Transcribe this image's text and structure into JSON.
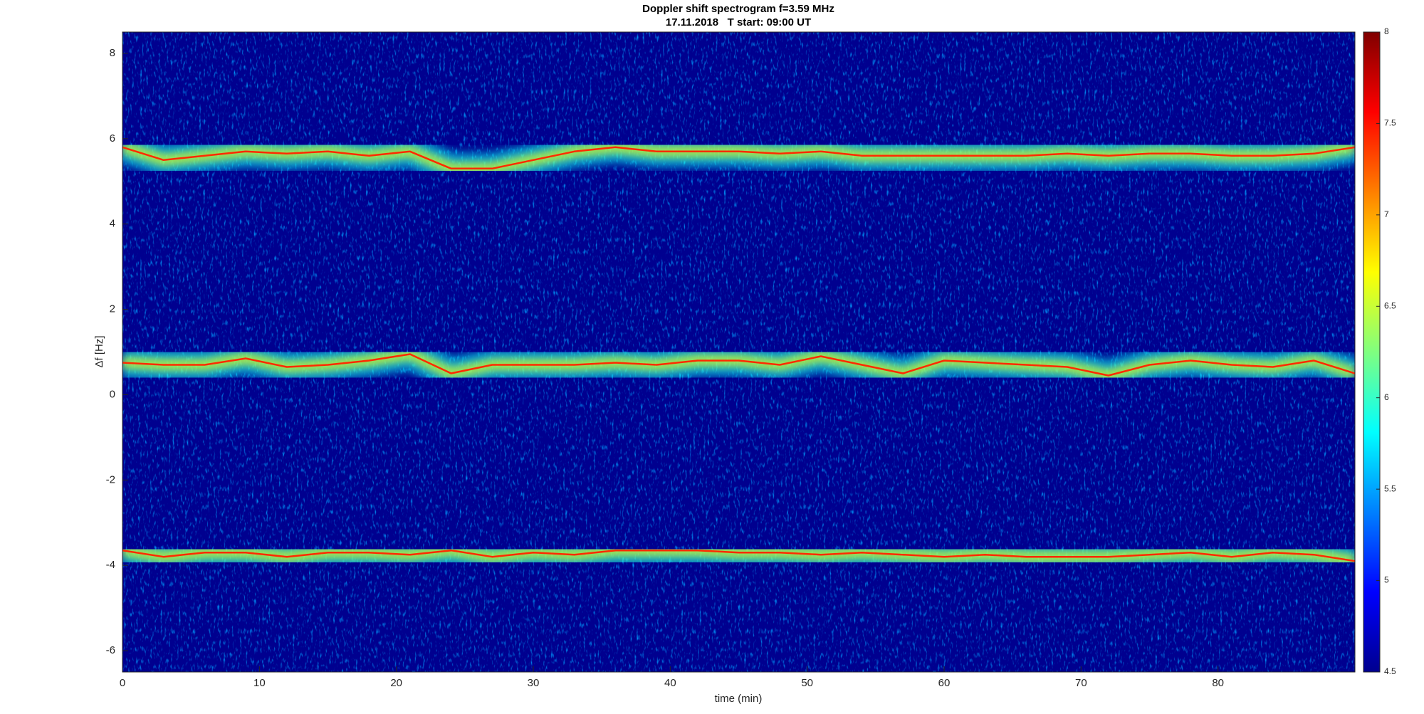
{
  "chart_data": {
    "type": "spectrogram",
    "title": "Doppler shift spectrogram f=3.59 MHz",
    "subtitle": "17.11.2018   T start: 09:00 UT",
    "xlabel": "time (min)",
    "ylabel": "Δf [Hz]",
    "xlim": [
      0,
      90
    ],
    "xticks": [
      0,
      10,
      20,
      30,
      40,
      50,
      60,
      70,
      80
    ],
    "ylim": [
      -6.5,
      8.5
    ],
    "yticks": [
      -6,
      -4,
      -2,
      0,
      2,
      4,
      6,
      8
    ],
    "colormap": "jet",
    "clim": [
      4.5,
      8
    ],
    "cticks": [
      4.5,
      5,
      5.5,
      6,
      6.5,
      7,
      7.5,
      8
    ],
    "x": [
      0,
      3,
      6,
      9,
      12,
      15,
      18,
      21,
      24,
      27,
      30,
      33,
      36,
      39,
      42,
      45,
      48,
      51,
      54,
      57,
      60,
      63,
      66,
      69,
      72,
      75,
      78,
      81,
      84,
      87,
      90
    ],
    "series": [
      {
        "color": "#ff2a00",
        "values": [
          5.8,
          5.5,
          5.6,
          5.7,
          5.65,
          5.7,
          5.6,
          5.7,
          5.3,
          5.3,
          5.5,
          5.7,
          5.8,
          5.7,
          5.7,
          5.7,
          5.65,
          5.7,
          5.6,
          5.6,
          5.6,
          5.6,
          5.6,
          5.65,
          5.6,
          5.65,
          5.65,
          5.6,
          5.6,
          5.65,
          5.8
        ]
      },
      {
        "color": "#ff2a00",
        "values": [
          0.75,
          0.7,
          0.7,
          0.85,
          0.65,
          0.7,
          0.8,
          0.95,
          0.5,
          0.7,
          0.7,
          0.7,
          0.75,
          0.7,
          0.8,
          0.8,
          0.7,
          0.9,
          0.7,
          0.5,
          0.8,
          0.75,
          0.7,
          0.65,
          0.45,
          0.7,
          0.8,
          0.7,
          0.65,
          0.8,
          0.5
        ]
      },
      {
        "color": "#ff2a00",
        "values": [
          -3.65,
          -3.8,
          -3.7,
          -3.7,
          -3.8,
          -3.7,
          -3.7,
          -3.75,
          -3.65,
          -3.8,
          -3.7,
          -3.75,
          -3.65,
          -3.65,
          -3.65,
          -3.7,
          -3.7,
          -3.75,
          -3.7,
          -3.75,
          -3.8,
          -3.75,
          -3.8,
          -3.8,
          -3.8,
          -3.75,
          -3.7,
          -3.8,
          -3.7,
          -3.75,
          -3.9
        ]
      }
    ]
  }
}
